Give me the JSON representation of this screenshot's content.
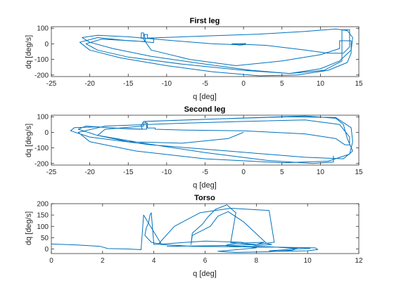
{
  "figure": {
    "background": "#ffffff",
    "line_color": "#0072bd",
    "axis_color": "#262626"
  },
  "chart_data": [
    {
      "type": "line",
      "title": "First leg",
      "xlabel": "q [deg]",
      "ylabel": "dq [deg/s]",
      "xlim": [
        -25,
        15
      ],
      "ylim": [
        -210,
        110
      ],
      "xticks": [
        -25,
        -20,
        -15,
        -10,
        -5,
        0,
        5,
        10,
        15
      ],
      "yticks": [
        -200,
        -100,
        0,
        100
      ],
      "grid": false,
      "series": [
        {
          "x": [
            -1,
            -4,
            -9,
            -15,
            -19,
            -21,
            -20,
            -17,
            -12,
            -5,
            1,
            6,
            10,
            12.5,
            14,
            14.2,
            13.5,
            12,
            8,
            2,
            -5,
            -12,
            -13.3,
            -13.3,
            -13,
            -12.8,
            -12.8,
            -15,
            -19,
            -21.3,
            -20,
            -16,
            -10,
            -4,
            2,
            7,
            11,
            13.5,
            14,
            14,
            12.5,
            12.5,
            10,
            5,
            -1,
            -7,
            -12,
            -13,
            -13,
            -12.5,
            -12.5,
            -11.7,
            -11.7,
            -14,
            -18.5,
            -20.5,
            -19,
            -15,
            -8,
            0,
            6,
            10.5,
            12.8,
            12.8,
            13.8,
            13.8,
            13,
            11,
            8,
            3,
            -1.5,
            -0.5,
            0.3,
            0.2,
            -0.5,
            -1.2
          ],
          "y": [
            -5,
            0,
            20,
            45,
            55,
            40,
            10,
            -30,
            -80,
            -130,
            -170,
            -190,
            -160,
            -110,
            -40,
            40,
            85,
            95,
            80,
            62,
            50,
            38,
            35,
            70,
            70,
            35,
            15,
            20,
            40,
            10,
            -40,
            -90,
            -140,
            -180,
            -205,
            -200,
            -170,
            -120,
            -60,
            20,
            20,
            -30,
            -70,
            -110,
            -140,
            -100,
            -40,
            30,
            60,
            60,
            35,
            35,
            8,
            18,
            30,
            0,
            -40,
            -85,
            -130,
            -170,
            -190,
            -170,
            -110,
            90,
            90,
            -20,
            -60,
            -60,
            -40,
            -10,
            0,
            0,
            2,
            -5,
            -8,
            -3
          ]
        }
      ]
    },
    {
      "type": "line",
      "title": "Second leg",
      "xlabel": "q [deg]",
      "ylabel": "dq [deg/s]",
      "xlim": [
        -25,
        15
      ],
      "ylim": [
        -210,
        110
      ],
      "xticks": [
        -25,
        -20,
        -15,
        -10,
        -5,
        0,
        5,
        10,
        15
      ],
      "yticks": [
        -200,
        -100,
        0,
        100
      ],
      "grid": false,
      "series": [
        {
          "x": [
            0,
            -2,
            -8,
            -15,
            -19,
            -18,
            -13,
            -13,
            -12.5,
            -12.5,
            -11.5,
            -11.5,
            -8,
            0,
            8,
            12,
            13.2,
            13.8,
            13.8,
            12.5,
            8,
            0,
            -10,
            -18,
            -21.5,
            -20,
            -14,
            -5,
            5,
            11,
            13.8,
            14.2,
            14,
            12,
            6,
            -4,
            -13,
            -13.3,
            -13.2,
            -15,
            -19,
            -22,
            -22.5,
            -20,
            -12,
            -2,
            8,
            13,
            14.2,
            13.5,
            13,
            12,
            8,
            -1,
            -12.8,
            -12.6,
            -12.6,
            -16,
            -20.5,
            -21.5,
            -19,
            -13,
            -5,
            3,
            9,
            11.7,
            11.7
          ],
          "y": [
            0,
            -40,
            -70,
            -60,
            -20,
            20,
            40,
            60,
            60,
            28,
            28,
            20,
            15,
            10,
            -10,
            -40,
            -80,
            -80,
            -30,
            50,
            80,
            70,
            55,
            40,
            0,
            -60,
            -120,
            -170,
            -195,
            -185,
            -140,
            -60,
            30,
            95,
            100,
            85,
            70,
            45,
            20,
            22,
            35,
            30,
            10,
            -30,
            -80,
            -120,
            -160,
            -170,
            -120,
            -40,
            50,
            90,
            105,
            90,
            70,
            50,
            20,
            25,
            40,
            20,
            -20,
            -70,
            -130,
            -180,
            -200,
            -190,
            -150
          ]
        }
      ]
    },
    {
      "type": "line",
      "title": "Torso",
      "xlabel": "q [deg]",
      "ylabel": "dq [deg/s]",
      "xlim": [
        0,
        12
      ],
      "ylim": [
        -20,
        200
      ],
      "xticks": [
        0,
        2,
        4,
        6,
        8,
        10,
        12
      ],
      "yticks": [
        0,
        50,
        100,
        150,
        200
      ],
      "grid": false,
      "series": [
        {
          "x": [
            0,
            1,
            1.9,
            2.2,
            3,
            3.5,
            3.6,
            3.6,
            4.3,
            5.5,
            7,
            9,
            10.3,
            10.4,
            10,
            9,
            8.5,
            9.5,
            10.1,
            10,
            9,
            8,
            7.5,
            8.5,
            9.6,
            9.4,
            8.5,
            7.2,
            6.5,
            7,
            8,
            7.7,
            6.8,
            6.9,
            7.2,
            8.3,
            8,
            7,
            7.2,
            7.1,
            7,
            6.9,
            6.85,
            6.4,
            6.1,
            5.9,
            5.5,
            5.45,
            5.5,
            6.2,
            6.5,
            6.9,
            7.5,
            8.4,
            8.6,
            8,
            7.4,
            6,
            4,
            3.9,
            3.85,
            3.8,
            3.7,
            3.65,
            3.9,
            4.3,
            4.2,
            4.8,
            5.8,
            7,
            8.5,
            8.7,
            8,
            6.5,
            4.5
          ],
          "y": [
            22,
            18,
            12,
            2,
            0,
            -3,
            150,
            150,
            20,
            12,
            10,
            8,
            5,
            -2,
            -8,
            -10,
            -8,
            0,
            3,
            5,
            8,
            10,
            12,
            10,
            2,
            -5,
            -12,
            -15,
            -10,
            -5,
            5,
            10,
            15,
            20,
            25,
            30,
            20,
            28,
            160,
            170,
            180,
            190,
            195,
            175,
            140,
            110,
            70,
            20,
            60,
            100,
            145,
            165,
            120,
            25,
            20,
            15,
            30,
            35,
            20,
            160,
            150,
            120,
            90,
            60,
            30,
            20,
            25,
            100,
            160,
            180,
            170,
            30,
            20,
            15,
            12
          ]
        }
      ]
    }
  ]
}
